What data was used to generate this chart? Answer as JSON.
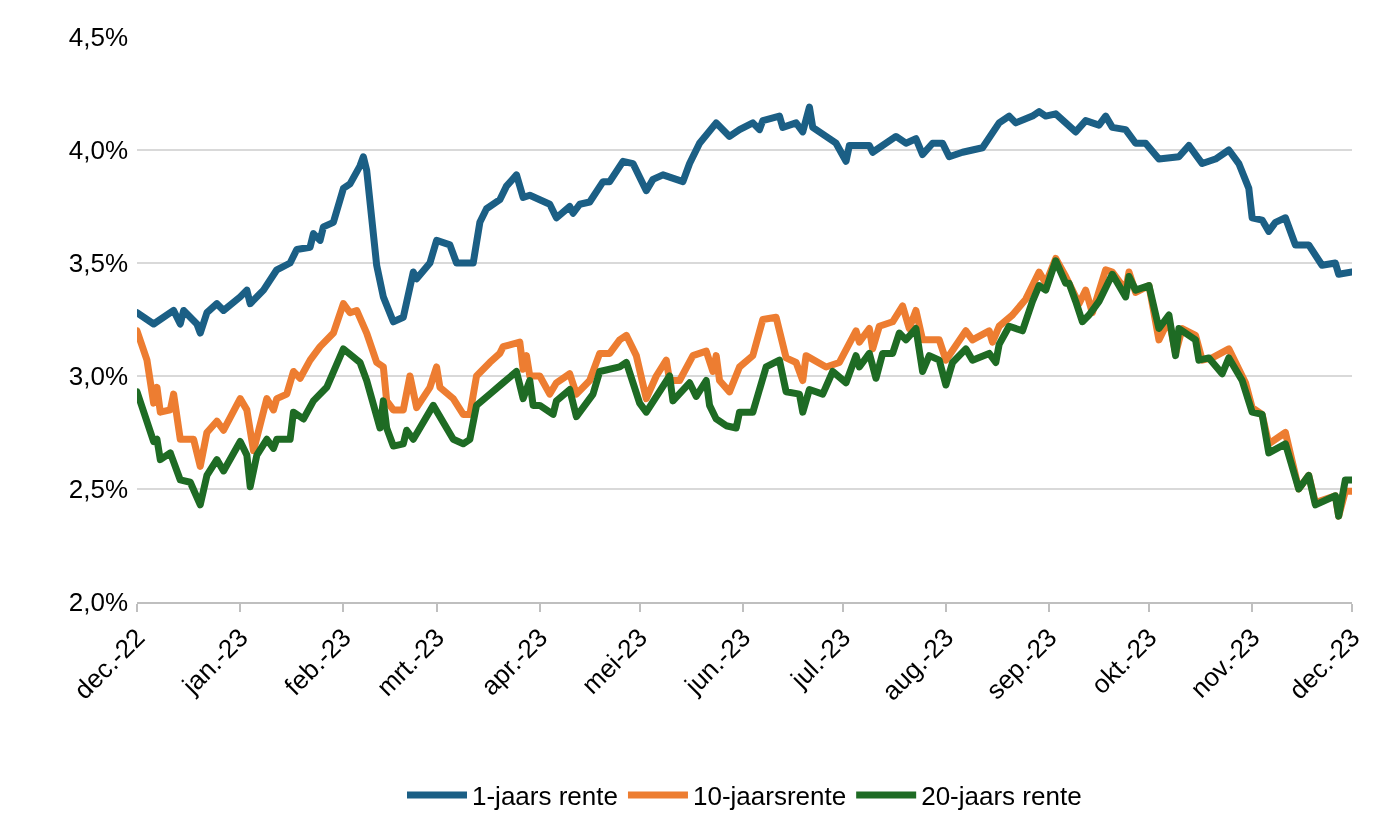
{
  "chart_data": {
    "type": "line",
    "xlim": [
      "2022-12-01",
      "2023-12-01"
    ],
    "xticks": [
      {
        "value": "2022-12-01",
        "label": "dec.-22"
      },
      {
        "value": "2023-01-01",
        "label": "jan.-23"
      },
      {
        "value": "2023-02-01",
        "label": "feb.-23"
      },
      {
        "value": "2023-03-01",
        "label": "mrt.-23"
      },
      {
        "value": "2023-04-01",
        "label": "apr.-23"
      },
      {
        "value": "2023-05-01",
        "label": "mei-23"
      },
      {
        "value": "2023-06-01",
        "label": "jun.-23"
      },
      {
        "value": "2023-07-01",
        "label": "jul.-23"
      },
      {
        "value": "2023-08-01",
        "label": "aug.-23"
      },
      {
        "value": "2023-09-01",
        "label": "sep.-23"
      },
      {
        "value": "2023-10-01",
        "label": "okt.-23"
      },
      {
        "value": "2023-11-01",
        "label": "nov.-23"
      },
      {
        "value": "2023-12-01",
        "label": "dec.-23"
      }
    ],
    "ylim": [
      2.0,
      4.5
    ],
    "yticks": [
      {
        "value": 2.0,
        "label": "2,0%"
      },
      {
        "value": 2.5,
        "label": "2,5%"
      },
      {
        "value": 3.0,
        "label": "3,0%"
      },
      {
        "value": 3.5,
        "label": "3,5%"
      },
      {
        "value": 4.0,
        "label": "4,0%"
      },
      {
        "value": 4.5,
        "label": "4,5%"
      }
    ],
    "grid": "y",
    "legend": "bottom",
    "marker": "none",
    "line_style": "solid",
    "series": [
      {
        "name": "1-jaars rente",
        "color": "#1b5f85",
        "x": [
          "2022-12-01",
          "2022-12-06",
          "2022-12-12",
          "2022-12-14",
          "2022-12-15",
          "2022-12-19",
          "2022-12-20",
          "2022-12-22",
          "2022-12-25",
          "2022-12-27",
          "2023-01-01",
          "2023-01-03",
          "2023-01-04",
          "2023-01-08",
          "2023-01-12",
          "2023-01-16",
          "2023-01-18",
          "2023-01-22",
          "2023-01-23",
          "2023-01-25",
          "2023-01-26",
          "2023-01-29",
          "2023-02-01",
          "2023-02-03",
          "2023-02-06",
          "2023-02-07",
          "2023-02-08",
          "2023-02-11",
          "2023-02-13",
          "2023-02-16",
          "2023-02-19",
          "2023-02-22",
          "2023-02-23",
          "2023-02-27",
          "2023-03-01",
          "2023-03-05",
          "2023-03-07",
          "2023-03-12",
          "2023-03-14",
          "2023-03-16",
          "2023-03-20",
          "2023-03-22",
          "2023-03-25",
          "2023-03-27",
          "2023-03-29",
          "2023-04-01",
          "2023-04-04",
          "2023-04-06",
          "2023-04-10",
          "2023-04-11",
          "2023-04-13",
          "2023-04-16",
          "2023-04-20",
          "2023-04-22",
          "2023-04-26",
          "2023-04-29",
          "2023-05-03",
          "2023-05-05",
          "2023-05-08",
          "2023-05-14",
          "2023-05-16",
          "2023-05-19",
          "2023-05-24",
          "2023-05-28",
          "2023-05-31",
          "2023-06-04",
          "2023-06-06",
          "2023-06-07",
          "2023-06-12",
          "2023-06-13",
          "2023-06-17",
          "2023-06-19",
          "2023-06-21",
          "2023-06-22",
          "2023-06-26",
          "2023-06-29",
          "2023-07-02",
          "2023-07-03",
          "2023-07-09",
          "2023-07-10",
          "2023-07-17",
          "2023-07-20",
          "2023-07-23",
          "2023-07-25",
          "2023-07-28",
          "2023-07-31",
          "2023-08-02",
          "2023-08-06",
          "2023-08-12",
          "2023-08-17",
          "2023-08-20",
          "2023-08-22",
          "2023-08-27",
          "2023-08-29",
          "2023-08-31",
          "2023-09-03",
          "2023-09-09",
          "2023-09-12",
          "2023-09-16",
          "2023-09-18",
          "2023-09-20",
          "2023-09-24",
          "2023-09-27",
          "2023-09-30",
          "2023-10-04",
          "2023-10-10",
          "2023-10-13",
          "2023-10-17",
          "2023-10-21",
          "2023-10-25",
          "2023-10-28",
          "2023-10-31",
          "2023-11-01",
          "2023-11-04",
          "2023-11-06",
          "2023-11-08",
          "2023-11-11",
          "2023-11-14",
          "2023-11-18",
          "2023-11-22",
          "2023-11-26",
          "2023-11-27",
          "2023-12-01"
        ],
        "values": [
          3.28,
          3.23,
          3.29,
          3.23,
          3.29,
          3.23,
          3.19,
          3.28,
          3.32,
          3.29,
          3.35,
          3.38,
          3.32,
          3.38,
          3.47,
          3.5,
          3.56,
          3.57,
          3.63,
          3.6,
          3.66,
          3.68,
          3.83,
          3.85,
          3.93,
          3.97,
          3.91,
          3.49,
          3.35,
          3.24,
          3.26,
          3.46,
          3.43,
          3.5,
          3.6,
          3.58,
          3.5,
          3.5,
          3.68,
          3.74,
          3.78,
          3.84,
          3.89,
          3.79,
          3.8,
          3.78,
          3.76,
          3.7,
          3.75,
          3.72,
          3.76,
          3.77,
          3.86,
          3.86,
          3.95,
          3.94,
          3.82,
          3.87,
          3.89,
          3.86,
          3.94,
          4.03,
          4.12,
          4.06,
          4.09,
          4.12,
          4.09,
          4.13,
          4.15,
          4.1,
          4.12,
          4.08,
          4.19,
          4.1,
          4.06,
          4.03,
          3.95,
          4.02,
          4.02,
          3.99,
          4.06,
          4.03,
          4.05,
          3.98,
          4.03,
          4.03,
          3.97,
          3.99,
          4.01,
          4.12,
          4.15,
          4.12,
          4.15,
          4.17,
          4.15,
          4.16,
          4.08,
          4.13,
          4.11,
          4.15,
          4.1,
          4.09,
          4.03,
          4.03,
          3.96,
          3.97,
          4.02,
          3.94,
          3.96,
          4.0,
          3.94,
          3.83,
          3.7,
          3.69,
          3.64,
          3.68,
          3.7,
          3.58,
          3.58,
          3.49,
          3.5,
          3.45,
          3.46
        ]
      },
      {
        "name": "10-jaarsrente",
        "color": "#ed7d31",
        "x": [
          "2022-12-01",
          "2022-12-04",
          "2022-12-06",
          "2022-12-07",
          "2022-12-08",
          "2022-12-11",
          "2022-12-12",
          "2022-12-14",
          "2022-12-18",
          "2022-12-20",
          "2022-12-22",
          "2022-12-25",
          "2022-12-27",
          "2023-01-01",
          "2023-01-03",
          "2023-01-05",
          "2023-01-09",
          "2023-01-11",
          "2023-01-12",
          "2023-01-15",
          "2023-01-17",
          "2023-01-19",
          "2023-01-22",
          "2023-01-25",
          "2023-01-29",
          "2023-02-01",
          "2023-02-03",
          "2023-02-05",
          "2023-02-08",
          "2023-02-11",
          "2023-02-13",
          "2023-02-14",
          "2023-02-16",
          "2023-02-19",
          "2023-02-21",
          "2023-02-23",
          "2023-02-27",
          "2023-03-01",
          "2023-03-02",
          "2023-03-06",
          "2023-03-09",
          "2023-03-11",
          "2023-03-13",
          "2023-03-17",
          "2023-03-20",
          "2023-03-21",
          "2023-03-26",
          "2023-03-27",
          "2023-03-28",
          "2023-03-29",
          "2023-04-01",
          "2023-04-04",
          "2023-04-06",
          "2023-04-10",
          "2023-04-12",
          "2023-04-16",
          "2023-04-19",
          "2023-04-22",
          "2023-04-25",
          "2023-04-27",
          "2023-04-30",
          "2023-05-03",
          "2023-05-06",
          "2023-05-09",
          "2023-05-10",
          "2023-05-13",
          "2023-05-17",
          "2023-05-21",
          "2023-05-23",
          "2023-05-24",
          "2023-05-25",
          "2023-05-28",
          "2023-05-31",
          "2023-06-04",
          "2023-06-07",
          "2023-06-11",
          "2023-06-14",
          "2023-06-17",
          "2023-06-19",
          "2023-06-20",
          "2023-06-26",
          "2023-06-30",
          "2023-07-05",
          "2023-07-06",
          "2023-07-09",
          "2023-07-10",
          "2023-07-12",
          "2023-07-16",
          "2023-07-19",
          "2023-07-21",
          "2023-07-23",
          "2023-07-25",
          "2023-07-30",
          "2023-08-01",
          "2023-08-07",
          "2023-08-09",
          "2023-08-14",
          "2023-08-15",
          "2023-08-17",
          "2023-08-21",
          "2023-08-25",
          "2023-08-29",
          "2023-08-31",
          "2023-09-03",
          "2023-09-06",
          "2023-09-10",
          "2023-09-12",
          "2023-09-14",
          "2023-09-18",
          "2023-09-20",
          "2023-09-24",
          "2023-09-25",
          "2023-09-27",
          "2023-10-01",
          "2023-10-04",
          "2023-10-07",
          "2023-10-09",
          "2023-10-11",
          "2023-10-15",
          "2023-10-17",
          "2023-10-20",
          "2023-10-25",
          "2023-10-30",
          "2023-11-01",
          "2023-11-04",
          "2023-11-06",
          "2023-11-11",
          "2023-11-15",
          "2023-11-18",
          "2023-11-20",
          "2023-11-26",
          "2023-11-27",
          "2023-11-29",
          "2023-12-01"
        ],
        "values": [
          3.2,
          3.07,
          2.88,
          2.95,
          2.84,
          2.85,
          2.92,
          2.72,
          2.72,
          2.6,
          2.75,
          2.8,
          2.76,
          2.9,
          2.85,
          2.67,
          2.9,
          2.85,
          2.9,
          2.92,
          3.02,
          2.99,
          3.07,
          3.13,
          3.19,
          3.32,
          3.28,
          3.29,
          3.19,
          3.06,
          3.04,
          2.89,
          2.85,
          2.85,
          3.0,
          2.86,
          2.95,
          3.04,
          2.95,
          2.9,
          2.83,
          2.83,
          3.0,
          3.06,
          3.1,
          3.13,
          3.15,
          3.03,
          3.09,
          3.0,
          3.0,
          2.92,
          2.97,
          3.01,
          2.92,
          2.98,
          3.1,
          3.1,
          3.16,
          3.18,
          3.09,
          2.9,
          3.0,
          3.07,
          2.98,
          2.98,
          3.09,
          3.11,
          3.02,
          3.09,
          2.98,
          2.93,
          3.04,
          3.09,
          3.25,
          3.26,
          3.08,
          3.06,
          2.98,
          3.09,
          3.04,
          3.06,
          3.2,
          3.15,
          3.21,
          3.12,
          3.22,
          3.24,
          3.31,
          3.21,
          3.29,
          3.16,
          3.16,
          3.07,
          3.2,
          3.16,
          3.2,
          3.15,
          3.22,
          3.27,
          3.34,
          3.46,
          3.41,
          3.52,
          3.44,
          3.32,
          3.38,
          3.28,
          3.47,
          3.46,
          3.38,
          3.46,
          3.37,
          3.4,
          3.16,
          3.25,
          3.1,
          3.21,
          3.18,
          3.07,
          3.08,
          3.12,
          2.97,
          2.86,
          2.83,
          2.7,
          2.75,
          2.5,
          2.56,
          2.44,
          2.47,
          2.38,
          2.49,
          2.49
        ]
      },
      {
        "name": "20-jaars rente",
        "color": "#1e6b24",
        "x": [
          "2022-12-01",
          "2022-12-06",
          "2022-12-07",
          "2022-12-08",
          "2022-12-11",
          "2022-12-14",
          "2022-12-17",
          "2022-12-20",
          "2022-12-22",
          "2022-12-25",
          "2022-12-27",
          "2023-01-01",
          "2023-01-03",
          "2023-01-04",
          "2023-01-06",
          "2023-01-09",
          "2023-01-11",
          "2023-01-12",
          "2023-01-16",
          "2023-01-17",
          "2023-01-20",
          "2023-01-23",
          "2023-01-27",
          "2023-02-01",
          "2023-02-06",
          "2023-02-08",
          "2023-02-12",
          "2023-02-13",
          "2023-02-14",
          "2023-02-16",
          "2023-02-19",
          "2023-02-20",
          "2023-02-22",
          "2023-02-28",
          "2023-03-06",
          "2023-03-09",
          "2023-03-11",
          "2023-03-13",
          "2023-03-17",
          "2023-03-21",
          "2023-03-25",
          "2023-03-27",
          "2023-03-29",
          "2023-03-30",
          "2023-04-01",
          "2023-04-05",
          "2023-04-06",
          "2023-04-10",
          "2023-04-12",
          "2023-04-17",
          "2023-04-19",
          "2023-04-25",
          "2023-04-27",
          "2023-05-01",
          "2023-05-03",
          "2023-05-10",
          "2023-05-11",
          "2023-05-16",
          "2023-05-18",
          "2023-05-21",
          "2023-05-22",
          "2023-05-24",
          "2023-05-27",
          "2023-05-30",
          "2023-05-31",
          "2023-06-04",
          "2023-06-08",
          "2023-06-12",
          "2023-06-14",
          "2023-06-18",
          "2023-06-19",
          "2023-06-21",
          "2023-06-25",
          "2023-06-28",
          "2023-07-02",
          "2023-07-05",
          "2023-07-06",
          "2023-07-09",
          "2023-07-11",
          "2023-07-13",
          "2023-07-16",
          "2023-07-18",
          "2023-07-20",
          "2023-07-23",
          "2023-07-25",
          "2023-07-27",
          "2023-07-30",
          "2023-08-01",
          "2023-08-03",
          "2023-08-07",
          "2023-08-09",
          "2023-08-14",
          "2023-08-16",
          "2023-08-17",
          "2023-08-20",
          "2023-08-24",
          "2023-08-27",
          "2023-08-29",
          "2023-08-31",
          "2023-09-03",
          "2023-09-06",
          "2023-09-07",
          "2023-09-09",
          "2023-09-11",
          "2023-09-13",
          "2023-09-16",
          "2023-09-20",
          "2023-09-24",
          "2023-09-25",
          "2023-09-27",
          "2023-10-01",
          "2023-10-04",
          "2023-10-07",
          "2023-10-09",
          "2023-10-10",
          "2023-10-15",
          "2023-10-16",
          "2023-10-19",
          "2023-10-23",
          "2023-10-25",
          "2023-10-29",
          "2023-11-01",
          "2023-11-04",
          "2023-11-06",
          "2023-11-11",
          "2023-11-15",
          "2023-11-18",
          "2023-11-20",
          "2023-11-26",
          "2023-11-27",
          "2023-11-29",
          "2023-12-01"
        ],
        "values": [
          2.93,
          2.71,
          2.72,
          2.63,
          2.66,
          2.54,
          2.53,
          2.43,
          2.56,
          2.63,
          2.58,
          2.71,
          2.65,
          2.51,
          2.65,
          2.72,
          2.68,
          2.72,
          2.72,
          2.84,
          2.81,
          2.89,
          2.95,
          3.12,
          3.06,
          2.98,
          2.77,
          2.89,
          2.77,
          2.69,
          2.7,
          2.76,
          2.72,
          2.87,
          2.72,
          2.7,
          2.72,
          2.87,
          2.92,
          2.97,
          3.02,
          2.9,
          2.98,
          2.87,
          2.87,
          2.83,
          2.89,
          2.94,
          2.82,
          2.92,
          3.02,
          3.04,
          3.06,
          2.88,
          2.84,
          3.0,
          2.89,
          2.97,
          2.91,
          2.98,
          2.87,
          2.81,
          2.78,
          2.77,
          2.84,
          2.84,
          3.04,
          3.07,
          2.93,
          2.92,
          2.84,
          2.94,
          2.92,
          3.02,
          2.97,
          3.09,
          3.04,
          3.1,
          2.99,
          3.1,
          3.1,
          3.19,
          3.16,
          3.21,
          3.02,
          3.09,
          3.07,
          2.96,
          3.06,
          3.12,
          3.07,
          3.1,
          3.06,
          3.14,
          3.22,
          3.2,
          3.33,
          3.4,
          3.38,
          3.51,
          3.41,
          3.41,
          3.33,
          3.24,
          3.27,
          3.33,
          3.45,
          3.35,
          3.44,
          3.38,
          3.4,
          3.21,
          3.27,
          3.09,
          3.21,
          3.16,
          3.07,
          3.08,
          3.01,
          3.08,
          2.98,
          2.84,
          2.83,
          2.66,
          2.7,
          2.5,
          2.56,
          2.43,
          2.47,
          2.38,
          2.54,
          2.54
        ]
      }
    ]
  }
}
